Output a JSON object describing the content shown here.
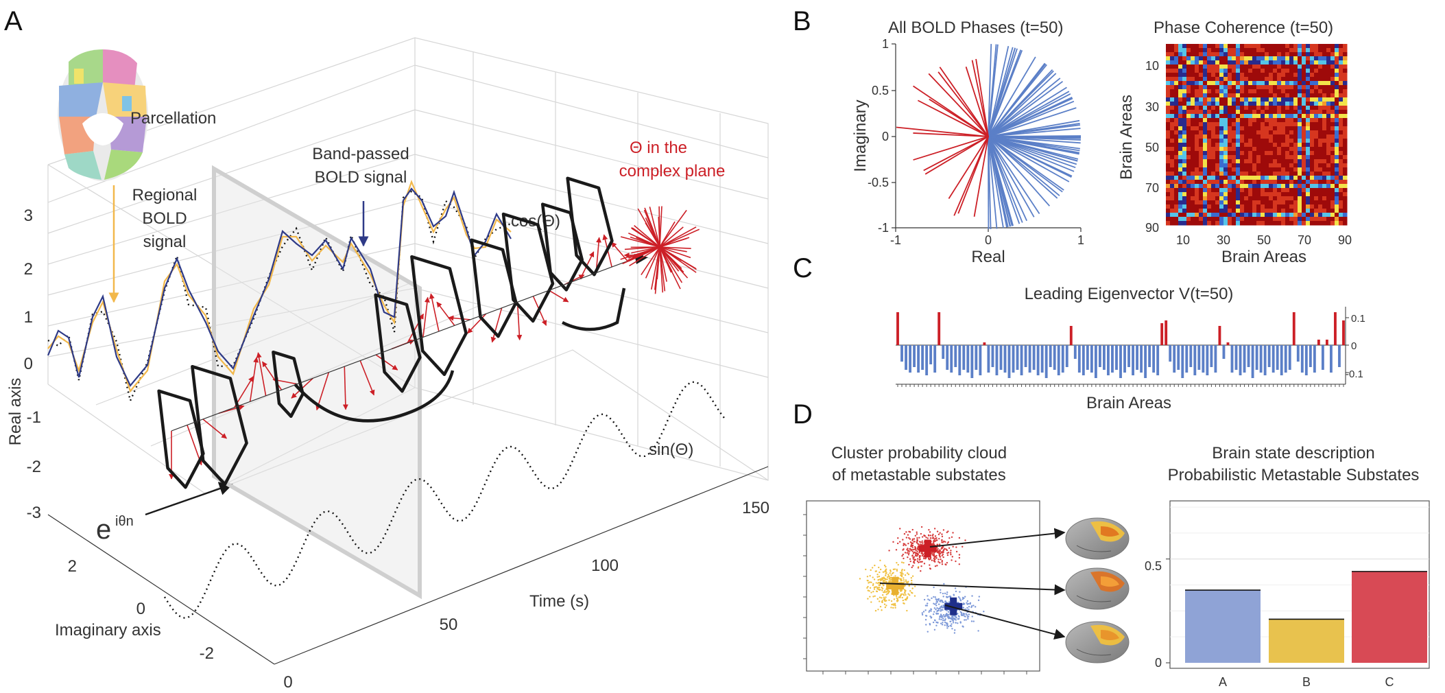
{
  "panels": {
    "a": "A",
    "b": "B",
    "c": "C",
    "d": "D"
  },
  "panel_a": {
    "parcellation_label": "Parcellation",
    "regional_bold": [
      "Regional",
      "BOLD",
      "signal"
    ],
    "bandpassed_bold": [
      "Band-passed",
      "BOLD signal"
    ],
    "theta_complex": [
      "Θ in the",
      "complex plane"
    ],
    "cos_label": "cos(Θ)",
    "sin_label": "sin(Θ)",
    "euler_base": "e",
    "euler_exp": "iθn",
    "real_axis_label": "Real axis",
    "imag_axis_label": "Imaginary axis",
    "time_axis_label": "Time (s)",
    "real_ticks": [
      "3",
      "2",
      "1",
      "0",
      "-1",
      "-2",
      "-3"
    ],
    "imag_ticks": [
      "2",
      "0",
      "-2"
    ],
    "time_ticks": [
      "0",
      "50",
      "100",
      "150"
    ],
    "colors": {
      "regional": "#f2b84b",
      "bandpassed": "#2e3a87",
      "phase": "#cc1f26",
      "frame": "#1a1a1a"
    }
  },
  "panel_b": {
    "phases_title": "All BOLD Phases (t=50)",
    "phases_xlabel": "Real",
    "phases_ylabel": "Imaginary",
    "phases_xticks": [
      "-1",
      "0",
      "1"
    ],
    "phases_yticks": [
      "1",
      "0.5",
      "0",
      "-0.5",
      "-1"
    ],
    "coherence_title": "Phase Coherence (t=50)",
    "coherence_xlabel": "Brain Areas",
    "coherence_ylabel": "Brain Areas",
    "coherence_xticks": [
      "10",
      "30",
      "50",
      "70",
      "90"
    ],
    "coherence_yticks": [
      "10",
      "30",
      "50",
      "70",
      "90"
    ],
    "colors": {
      "positive": "#5b7fc7",
      "negative": "#cc1f26"
    }
  },
  "panel_c": {
    "title": "Leading Eigenvector V(t=50)",
    "xlabel": "Brain Areas",
    "yticks": [
      "0.1",
      "0",
      "-0.1"
    ]
  },
  "panel_d": {
    "cloud_title": [
      "Cluster probability cloud",
      "of metastable substates"
    ],
    "bar_title": [
      "Brain state description",
      "Probabilistic Metastable Substates"
    ],
    "bar_yticks": [
      "0.5",
      "0"
    ],
    "colors": {
      "A": "#8fa3d6",
      "B": "#e8c24e",
      "C": "#d84a55",
      "red": "#cc1f26",
      "yellow": "#e8b030",
      "blue": "#1f2f8a"
    }
  },
  "chart_data": [
    {
      "type": "bar",
      "title": "Leading Eigenvector V(t=50)",
      "xlabel": "Brain Areas",
      "ylabel": "",
      "ylim": [
        -0.14,
        0.13
      ],
      "yticks": [
        0.1,
        0,
        -0.1
      ],
      "values": [
        0.12,
        -0.06,
        -0.09,
        -0.1,
        -0.08,
        -0.1,
        -0.09,
        -0.11,
        -0.07,
        -0.1,
        0.12,
        -0.05,
        -0.09,
        -0.1,
        -0.08,
        -0.11,
        -0.09,
        -0.1,
        -0.12,
        -0.09,
        -0.11,
        0.01,
        -0.1,
        -0.08,
        -0.11,
        -0.09,
        -0.1,
        -0.12,
        -0.1,
        -0.09,
        -0.11,
        -0.08,
        -0.1,
        -0.09,
        -0.11,
        -0.1,
        -0.12,
        -0.08,
        -0.09,
        -0.11,
        -0.1,
        -0.08,
        0.07,
        -0.05,
        -0.1,
        -0.11,
        -0.09,
        -0.1,
        -0.12,
        -0.08,
        -0.09,
        -0.11,
        -0.1,
        -0.09,
        -0.12,
        -0.1,
        -0.08,
        -0.11,
        -0.09,
        -0.1,
        -0.12,
        -0.08,
        -0.1,
        -0.11,
        0.08,
        0.09,
        -0.06,
        -0.1,
        -0.09,
        -0.12,
        -0.1,
        -0.08,
        -0.11,
        -0.09,
        -0.1,
        -0.11,
        -0.08,
        -0.1,
        0.07,
        -0.05,
        0.01,
        -0.1,
        -0.09,
        -0.11,
        -0.1,
        -0.08,
        -0.12,
        -0.09,
        -0.1,
        -0.11,
        -0.08,
        -0.1,
        -0.09,
        -0.11,
        -0.1,
        -0.09,
        0.12,
        -0.06,
        -0.1,
        -0.11,
        -0.08,
        -0.1,
        0.02,
        -0.09,
        0.02,
        -0.1,
        0.12,
        -0.08,
        0.09
      ]
    },
    {
      "type": "bar",
      "title": "Brain state description Probabilistic Metastable Substates",
      "categories": [
        "A",
        "B",
        "C"
      ],
      "values": [
        0.35,
        0.21,
        0.44
      ],
      "ylim": [
        0,
        0.78
      ],
      "yticks": [
        0,
        0.5
      ],
      "xlabel": "",
      "ylabel": ""
    },
    {
      "type": "scatter",
      "title": "Cluster probability cloud of metastable substates",
      "series": [],
      "centroids": [
        {
          "color": "red",
          "x": 0.52,
          "y": 0.72
        },
        {
          "color": "yellow",
          "x": 0.38,
          "y": 0.5
        },
        {
          "color": "blue",
          "x": 0.63,
          "y": 0.38
        }
      ],
      "xlim": [
        0,
        1
      ],
      "ylim": [
        0,
        1
      ]
    }
  ]
}
